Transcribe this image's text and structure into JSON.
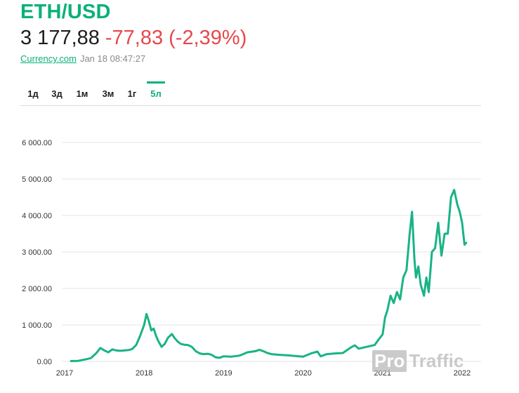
{
  "header": {
    "pair": "ETH/USD",
    "price": "3 177,88",
    "change": "-77,83 (-2,39%)",
    "source": "Currency.com",
    "timestamp": "Jan 18 08:47:27"
  },
  "range_tabs": [
    {
      "label": "1д",
      "active": false
    },
    {
      "label": "3д",
      "active": false
    },
    {
      "label": "1м",
      "active": false
    },
    {
      "label": "3м",
      "active": false
    },
    {
      "label": "1г",
      "active": false
    },
    {
      "label": "5л",
      "active": true
    }
  ],
  "watermark": {
    "left": "Pro",
    "right": "Traffic"
  },
  "colors": {
    "accent": "#0bb07b",
    "negative": "#e5484d",
    "line": "#19b386",
    "grid": "#e6e6e6"
  },
  "chart_data": {
    "type": "line",
    "title": "",
    "xlabel": "",
    "ylabel": "",
    "x_ticks": [
      "2017",
      "2018",
      "2019",
      "2020",
      "2021",
      "2022"
    ],
    "y_ticks": [
      "0.00",
      "1 000.00",
      "2 000.00",
      "3 000.00",
      "4 000.00",
      "5 000.00",
      "6 000.00"
    ],
    "ylim": [
      0,
      6000
    ],
    "xlim": [
      2017.0,
      2022.1
    ],
    "grid": true,
    "series": [
      {
        "x": [
          2017.08,
          2017.17,
          2017.25,
          2017.33,
          2017.4,
          2017.45,
          2017.5,
          2017.55,
          2017.6,
          2017.65,
          2017.7,
          2017.75,
          2017.8,
          2017.85,
          2017.9,
          2017.95,
          2018.0,
          2018.03,
          2018.06,
          2018.09,
          2018.12,
          2018.15,
          2018.18,
          2018.22,
          2018.26,
          2018.3,
          2018.35,
          2018.38,
          2018.42,
          2018.46,
          2018.5,
          2018.55,
          2018.6,
          2018.65,
          2018.7,
          2018.75,
          2018.8,
          2018.85,
          2018.9,
          2018.95,
          2019.0,
          2019.1,
          2019.2,
          2019.3,
          2019.4,
          2019.45,
          2019.5,
          2019.55,
          2019.6,
          2019.7,
          2019.8,
          2019.9,
          2020.0,
          2020.1,
          2020.18,
          2020.22,
          2020.3,
          2020.4,
          2020.5,
          2020.6,
          2020.65,
          2020.7,
          2020.8,
          2020.9,
          2020.95,
          2021.0,
          2021.03,
          2021.06,
          2021.1,
          2021.14,
          2021.18,
          2021.22,
          2021.26,
          2021.3,
          2021.34,
          2021.37,
          2021.4,
          2021.42,
          2021.45,
          2021.48,
          2021.52,
          2021.55,
          2021.58,
          2021.62,
          2021.66,
          2021.7,
          2021.74,
          2021.78,
          2021.82,
          2021.86,
          2021.9,
          2021.94,
          2021.97,
          2022.0,
          2022.03,
          2022.05
        ],
        "values": [
          10,
          15,
          50,
          90,
          230,
          370,
          300,
          250,
          330,
          300,
          290,
          300,
          310,
          340,
          450,
          700,
          1000,
          1300,
          1100,
          850,
          900,
          700,
          550,
          400,
          480,
          650,
          750,
          650,
          550,
          480,
          460,
          450,
          400,
          280,
          220,
          200,
          210,
          180,
          110,
          100,
          140,
          130,
          160,
          250,
          280,
          320,
          280,
          230,
          200,
          180,
          170,
          150,
          130,
          220,
          270,
          140,
          200,
          220,
          230,
          380,
          440,
          350,
          400,
          450,
          600,
          740,
          1200,
          1400,
          1800,
          1600,
          1900,
          1700,
          2300,
          2500,
          3500,
          4100,
          2800,
          2300,
          2600,
          2100,
          1800,
          2300,
          1900,
          3000,
          3100,
          3800,
          2900,
          3500,
          3500,
          4500,
          4700,
          4300,
          4100,
          3800,
          3200,
          3250
        ]
      }
    ]
  }
}
